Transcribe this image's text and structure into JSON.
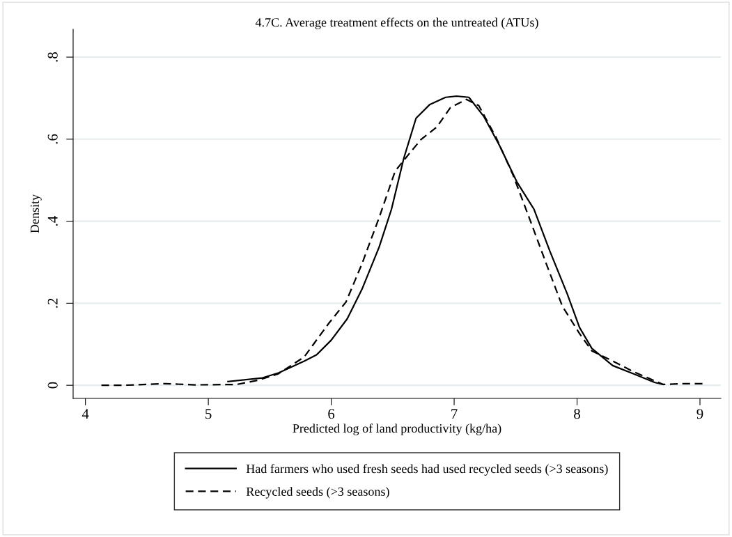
{
  "chart_data": {
    "type": "line",
    "title": "4.7C. Average treatment effects on the untreated (ATUs)",
    "xlabel": "Predicted log of land productivity (kg/ha)",
    "ylabel": "Density",
    "xlim": [
      3.9,
      9.17
    ],
    "xticks": [
      4,
      5,
      6,
      7,
      8,
      9
    ],
    "ylim": [
      -0.032,
      0.868
    ],
    "yticks": [
      {
        "value": 0,
        "label": "0"
      },
      {
        "value": 0.2,
        "label": ".2"
      },
      {
        "value": 0.4,
        "label": ".4"
      },
      {
        "value": 0.6,
        "label": ".6"
      },
      {
        "value": 0.8,
        "label": ".8"
      }
    ],
    "grid": "y",
    "legend": "bottom",
    "series": [
      {
        "name": "Had farmers who used fresh seeds had used recycled seeds (>3 seasons)",
        "color": "#000000",
        "line_style": "solid",
        "x": [
          5.16,
          5.44,
          5.57,
          5.78,
          5.88,
          6.0,
          6.13,
          6.25,
          6.39,
          6.49,
          6.59,
          6.69,
          6.8,
          6.93,
          7.02,
          7.12,
          7.24,
          7.37,
          7.51,
          7.65,
          7.78,
          7.92,
          8.02,
          8.12,
          8.29,
          8.46,
          8.63,
          8.7
        ],
        "values": [
          0.009,
          0.018,
          0.03,
          0.059,
          0.074,
          0.11,
          0.162,
          0.234,
          0.337,
          0.429,
          0.553,
          0.651,
          0.684,
          0.702,
          0.705,
          0.702,
          0.656,
          0.584,
          0.496,
          0.429,
          0.326,
          0.223,
          0.141,
          0.09,
          0.048,
          0.028,
          0.007,
          0.002
        ]
      },
      {
        "name": "Recycled seeds (>3 seasons)",
        "color": "#000000",
        "line_style": "dashed",
        "x": [
          4.13,
          4.31,
          4.65,
          4.89,
          5.23,
          5.4,
          5.57,
          5.78,
          5.98,
          6.12,
          6.25,
          6.39,
          6.52,
          6.63,
          6.73,
          6.86,
          6.97,
          7.1,
          7.2,
          7.34,
          7.48,
          7.61,
          7.75,
          7.88,
          8.02,
          8.12,
          8.29,
          8.46,
          8.7,
          8.87,
          9.04
        ],
        "values": [
          0.0,
          0.0,
          0.004,
          0.001,
          0.002,
          0.012,
          0.028,
          0.069,
          0.151,
          0.203,
          0.296,
          0.409,
          0.522,
          0.563,
          0.599,
          0.63,
          0.677,
          0.697,
          0.682,
          0.605,
          0.512,
          0.409,
          0.296,
          0.193,
          0.126,
          0.084,
          0.059,
          0.033,
          0.002,
          0.004,
          0.004
        ]
      }
    ]
  }
}
